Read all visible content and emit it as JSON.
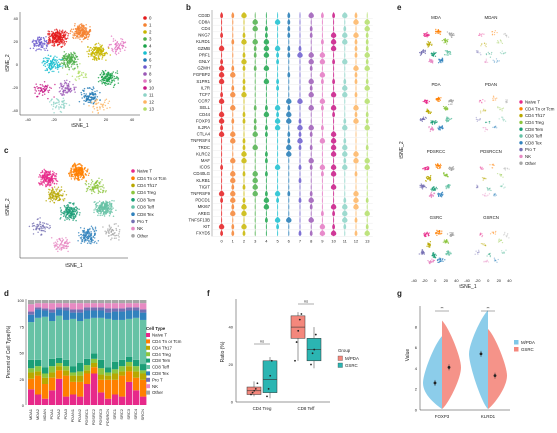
{
  "panel_labels": [
    "a",
    "b",
    "c",
    "d",
    "e",
    "f",
    "g"
  ],
  "palette": [
    "#e41a1c",
    "#f58231",
    "#c8b600",
    "#4daf4a",
    "#1aa34a",
    "#17becf",
    "#1f78b4",
    "#6a5acd",
    "#9b59b6",
    "#e377c2",
    "#c71585",
    "#8dd3c7",
    "#fdb462",
    "#b3de69"
  ],
  "celltype_colors": {
    "Naive T": "#e7298a",
    "CD4 Tn or Tcm": "#ff7f00",
    "CD4 Th17": "#b8a800",
    "CD4 Treg": "#8dc63f",
    "CD8 Tem": "#1b9e77",
    "CD8 Teff": "#66c2a5",
    "CD8 Tex": "#3182bd",
    "Pro T": "#7570b3",
    "NK": "#e78ac3",
    "Other": "#a6a6a6"
  },
  "panel_a": {
    "xlabel": "tSNE_1",
    "ylabel": "tSNE_2",
    "xticks": [
      "-40",
      "-20",
      "0",
      "20",
      "40"
    ],
    "yticks": [
      "40",
      "20",
      "0",
      "-20",
      "-40"
    ],
    "legend": [
      "0",
      "1",
      "2",
      "3",
      "4",
      "5",
      "6",
      "7",
      "8",
      "9",
      "10",
      "11",
      "12",
      "13"
    ]
  },
  "panel_c": {
    "xlabel": "tSNE_1",
    "ylabel": "tSNE_2",
    "legend": [
      "Naive T",
      "CD4 Tn or Tcm",
      "CD4 Th17",
      "CD4 Treg",
      "CD8 Tem",
      "CD8 Teff",
      "CD8 Tex",
      "Pro T",
      "NK",
      "Other"
    ]
  },
  "panel_b": {
    "genes": [
      "CD3D",
      "CD8A",
      "CD4",
      "NKG7",
      "KLRD1",
      "GZMB",
      "PRF1",
      "GNLY",
      "GZMH",
      "FGFBP2",
      "S1PR1",
      "IL7R",
      "TCF7",
      "CCR7",
      "SELL",
      "CD44",
      "FOXP3",
      "IL2RA",
      "CTLA4",
      "TNFRSF4",
      "TRDC",
      "KLRC2",
      "MAF",
      "ICOS",
      "CD40LG",
      "KLRB1",
      "TIGIT",
      "TNFRSF9",
      "PDCD1",
      "MKI67",
      "AREG",
      "TNFSF13B",
      "KIT",
      "FXYD5"
    ],
    "clusters": [
      "0",
      "1",
      "2",
      "3",
      "4",
      "5",
      "6",
      "7",
      "8",
      "9",
      "10",
      "11",
      "12",
      "13"
    ]
  },
  "panel_d": {
    "ylabel": "Percent of Cell Type(%)",
    "yticks": [
      "100",
      "75",
      "50",
      "25",
      "0"
    ],
    "legend_title": "Cell Type",
    "legend": [
      "Naive T",
      "CD4 Tn or Tcm",
      "CD4 Th17",
      "CD4 Treg",
      "CD8 Tem",
      "CD8 Teff",
      "CD8 Tex",
      "Pro T",
      "NK",
      "Other"
    ],
    "samples": [
      "MDA1",
      "MDA2",
      "MDAN",
      "PDA1",
      "PDA2",
      "PDA3",
      "PDAN1",
      "PDAN2",
      "PDSRC1",
      "PDSRC2",
      "PDSRC3",
      "PDSRCN",
      "SRC1",
      "SRC2",
      "SRC3",
      "SRC4",
      "SRCN"
    ]
  },
  "panel_e": {
    "titles": [
      "MDA",
      "MDAN",
      "PDA",
      "PDAN",
      "PDSRCC",
      "PDSRCCN",
      "GSRC",
      "GSRCN"
    ],
    "xlabel": "tSNE_1",
    "ylabel": "tSNE_2",
    "xticks": [
      "-40",
      "-20",
      "0",
      "20",
      "40",
      "-40",
      "-20",
      "0",
      "20",
      "40"
    ],
    "legend": [
      "Naive T",
      "CD4 Tn or Tcm",
      "CD4 Th17",
      "CD4 Treg",
      "CD8 Tem",
      "CD8 Teff",
      "CD8 Tex",
      "Pro T",
      "NK",
      "Other"
    ]
  },
  "panel_f": {
    "ylabel": "Ratio (%)",
    "yticks": [
      "40",
      "20",
      "0"
    ],
    "categories": [
      "CD4 Treg",
      "CD8 Teff"
    ],
    "annotations": [
      "ns",
      "ns"
    ],
    "legend_title": "Group",
    "legend": [
      "M/PDA",
      "GSRC"
    ],
    "colors": [
      "#f4877c",
      "#2bb5b2"
    ]
  },
  "panel_g": {
    "ylabel": "Value",
    "yticks": [
      "8",
      "6",
      "4",
      "2",
      "0"
    ],
    "categories": [
      "FOXP3",
      "KLRD1"
    ],
    "annotations": [
      "**",
      "**"
    ],
    "legend": [
      "M/PDA",
      "GSRC"
    ],
    "colors": [
      "#7fc8e8",
      "#f4877c"
    ]
  },
  "chart_data": [
    {
      "type": "bar",
      "panel": "d",
      "stacked": true,
      "categories": [
        "MDA1",
        "MDA2",
        "MDAN",
        "PDA1",
        "PDA2",
        "PDA3",
        "PDAN1",
        "PDAN2",
        "PDSRC1",
        "PDSRC2",
        "PDSRC3",
        "PDSRCN",
        "SRC1",
        "SRC2",
        "SRC3",
        "SRC4",
        "SRCN"
      ],
      "ylabel": "Percent of Cell Type(%)",
      "ylim": [
        0,
        100
      ],
      "series": [
        {
          "name": "Naive T",
          "values": [
            15,
            10,
            6,
            14,
            25,
            8,
            10,
            8,
            20,
            30,
            12,
            6,
            10,
            8,
            22,
            14,
            8
          ]
        },
        {
          "name": "CD4 Tn or Tcm",
          "values": [
            10,
            18,
            14,
            12,
            8,
            20,
            12,
            14,
            10,
            6,
            12,
            18,
            14,
            20,
            10,
            12,
            16
          ]
        },
        {
          "name": "CD4 Th17",
          "values": [
            6,
            4,
            6,
            5,
            4,
            5,
            6,
            6,
            3,
            4,
            5,
            4,
            6,
            4,
            5,
            6,
            6
          ]
        },
        {
          "name": "CD4 Treg",
          "values": [
            4,
            5,
            4,
            6,
            3,
            4,
            3,
            4,
            5,
            4,
            6,
            3,
            4,
            5,
            4,
            5,
            3
          ]
        },
        {
          "name": "CD8 Tem",
          "values": [
            8,
            6,
            6,
            7,
            5,
            6,
            6,
            8,
            6,
            5,
            8,
            5,
            7,
            6,
            5,
            6,
            6
          ]
        },
        {
          "name": "CD8 Teff",
          "values": [
            36,
            40,
            48,
            36,
            40,
            38,
            45,
            40,
            38,
            34,
            40,
            46,
            40,
            38,
            36,
            40,
            42
          ]
        },
        {
          "name": "CD8 Tex",
          "values": [
            7,
            8,
            6,
            8,
            6,
            9,
            6,
            8,
            8,
            7,
            7,
            6,
            8,
            8,
            8,
            7,
            7
          ]
        },
        {
          "name": "Pro T",
          "values": [
            3,
            2,
            2,
            3,
            2,
            3,
            3,
            3,
            3,
            3,
            3,
            4,
            3,
            3,
            3,
            3,
            3
          ]
        },
        {
          "name": "NK",
          "values": [
            7,
            4,
            5,
            6,
            4,
            4,
            6,
            6,
            4,
            4,
            4,
            5,
            5,
            5,
            4,
            4,
            6
          ]
        },
        {
          "name": "Other",
          "values": [
            4,
            3,
            3,
            3,
            3,
            3,
            3,
            3,
            3,
            3,
            3,
            3,
            3,
            3,
            3,
            3,
            3
          ]
        }
      ]
    },
    {
      "type": "box",
      "panel": "f",
      "categories": [
        "CD4 Treg",
        "CD8 Teff"
      ],
      "ylabel": "Ratio (%)",
      "ylim": [
        0,
        55
      ],
      "series": [
        {
          "name": "M/PDA",
          "q": [
            [
              3,
              4,
              6,
              8,
              11
            ],
            [
              22,
              34,
              40,
              46,
              48
            ]
          ],
          "points": [
            [
              4,
              5,
              6,
              7,
              10
            ],
            [
              22,
              32,
              38,
              44,
              47
            ]
          ]
        },
        {
          "name": "GSRC",
          "q": [
            [
              2,
              5,
              12,
              22,
              24
            ],
            [
              18,
              22,
              28,
              34,
              40
            ]
          ],
          "points": [
            [
              3,
              7,
              14,
              22
            ],
            [
              20,
              26,
              28,
              36
            ]
          ]
        }
      ]
    },
    {
      "type": "violin",
      "panel": "g",
      "categories": [
        "FOXP3",
        "KLRD1"
      ],
      "ylabel": "Value",
      "ylim": [
        0,
        10
      ],
      "series": [
        {
          "name": "M/PDA",
          "means": [
            2.6,
            5.4
          ]
        },
        {
          "name": "GSRC",
          "means": [
            4.1,
            3.3
          ]
        }
      ]
    }
  ]
}
